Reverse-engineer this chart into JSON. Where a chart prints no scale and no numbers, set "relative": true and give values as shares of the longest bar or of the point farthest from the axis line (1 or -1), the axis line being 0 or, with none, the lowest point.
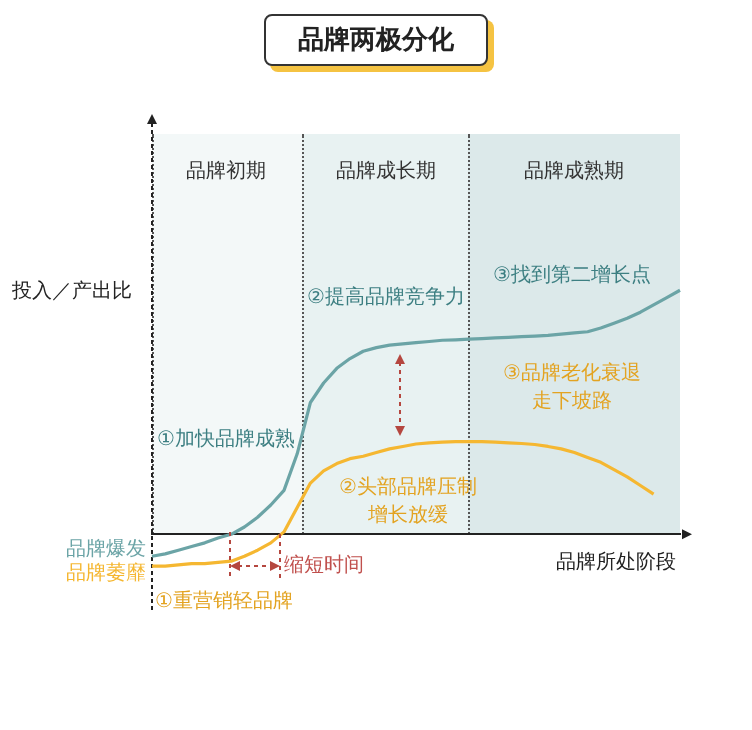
{
  "chart_data": {
    "type": "line",
    "title": "品牌两极分化",
    "xlabel": "品牌所处阶段",
    "ylabel": "投入／产出比",
    "relative": true,
    "marker": "none",
    "line_style": "solid",
    "categories": [
      null,
      null,
      null,
      null,
      null,
      null,
      null,
      null,
      null,
      null,
      null,
      null,
      null,
      null,
      null,
      null,
      null,
      null,
      null,
      null,
      null,
      null,
      null,
      null,
      null,
      null,
      null,
      null,
      null,
      null,
      null,
      null,
      null,
      null,
      null,
      null,
      null,
      null,
      null,
      null,
      null
    ],
    "series": [
      {
        "name": "品牌爆发",
        "color": "#6ba4a6",
        "values": [
          -0.09,
          -0.08,
          -0.065,
          -0.05,
          -0.035,
          -0.015,
          0.0,
          0.03,
          0.07,
          0.12,
          0.18,
          0.33,
          0.54,
          0.62,
          0.68,
          0.72,
          0.75,
          0.765,
          0.775,
          0.78,
          0.785,
          0.79,
          0.795,
          0.797,
          0.8,
          0.802,
          0.805,
          0.807,
          0.81,
          0.812,
          0.815,
          0.82,
          0.825,
          0.83,
          0.845,
          0.865,
          0.885,
          0.91,
          0.94,
          0.97,
          1
        ]
      },
      {
        "name": "品牌萎靡",
        "color": "#f5b731",
        "values": [
          -0.13,
          -0.13,
          -0.125,
          -0.12,
          -0.12,
          -0.115,
          -0.11,
          -0.09,
          -0.065,
          -0.035,
          0.01,
          0.11,
          0.21,
          0.26,
          0.29,
          0.31,
          0.32,
          0.335,
          0.35,
          0.36,
          0.37,
          0.375,
          0.378,
          0.38,
          0.38,
          0.38,
          0.378,
          0.375,
          0.372,
          0.368,
          0.36,
          0.35,
          0.335,
          0.315,
          0.295,
          0.265,
          0.235,
          0.2,
          0.165,
          null,
          null
        ]
      }
    ],
    "annotations": [
      "品牌初期",
      "品牌成长期",
      "品牌成熟期",
      "①加快品牌成熟",
      "②提高品牌竞争力",
      "③找到第二增长点",
      "③品牌老化衰退",
      "走下坡路",
      "②头部品牌压制",
      "增长放缓",
      "缩短时间",
      "①重营销轻品牌"
    ]
  }
}
